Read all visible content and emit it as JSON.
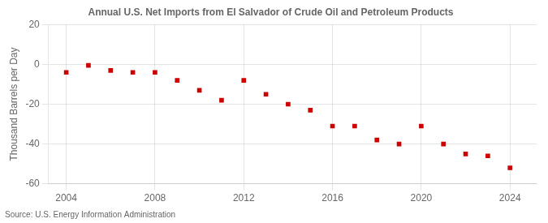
{
  "chart_data": {
    "type": "scatter",
    "title": "Annual U.S. Net Imports from El Salvador of Crude Oil and Petroleum Products",
    "ylabel": "Thousand Barrels per Day",
    "annotation": "Source: U.S. Energy Information Administration",
    "x": [
      2004,
      2005,
      2006,
      2007,
      2008,
      2009,
      2010,
      2011,
      2012,
      2013,
      2014,
      2015,
      2016,
      2017,
      2018,
      2019,
      2020,
      2021,
      2022,
      2023,
      2024
    ],
    "values": [
      -4,
      -0.5,
      -3,
      -4,
      -4,
      -8,
      -13,
      -18,
      -8,
      -15,
      -20,
      -23,
      -31,
      -31,
      -38,
      -40,
      -31,
      -40,
      -45,
      -46,
      -52
    ],
    "color": "#cc0000",
    "marker": "square",
    "xlim": [
      2003.2,
      2025.2
    ],
    "xticks": [
      2004,
      2008,
      2012,
      2016,
      2020,
      2024
    ],
    "ylim": [
      -60,
      20
    ],
    "yticks": [
      -60,
      -40,
      -20,
      0,
      20
    ],
    "grid": true
  }
}
